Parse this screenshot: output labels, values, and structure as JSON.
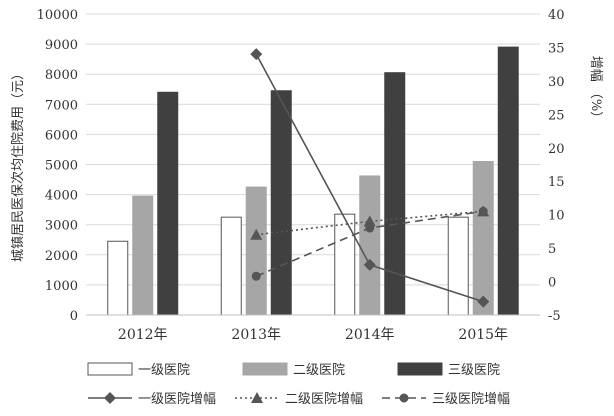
{
  "chart_data": {
    "type": "bar",
    "categories": [
      "2012年",
      "2013年",
      "2014年",
      "2015年"
    ],
    "ylabel": "城镇居民医保次均住院费用（元）",
    "y2label": "增幅 （%）",
    "ylim": [
      0,
      10000
    ],
    "yticks": [
      0,
      1000,
      2000,
      3000,
      4000,
      5000,
      6000,
      7000,
      8000,
      9000,
      10000
    ],
    "y2lim": [
      -5,
      40
    ],
    "y2ticks": [
      -5,
      0,
      5,
      10,
      15,
      20,
      25,
      30,
      35,
      40
    ],
    "grid": true,
    "legend_position": "bottom",
    "bar_series": [
      {
        "name": "一级医院",
        "values": [
          2450,
          3250,
          3350,
          3250
        ],
        "color": "#ffffff"
      },
      {
        "name": "二级医院",
        "values": [
          3950,
          4250,
          4620,
          5100
        ],
        "color": "#a6a6a6"
      },
      {
        "name": "三级医院",
        "values": [
          7400,
          7450,
          8050,
          8900
        ],
        "color": "#404040"
      }
    ],
    "line_series": [
      {
        "name": "一级医院增幅",
        "values": [
          null,
          34,
          2.5,
          -3
        ],
        "color": "#555555",
        "dash": "solid",
        "marker": "diamond"
      },
      {
        "name": "二级医院增幅",
        "values": [
          null,
          7,
          9,
          10.5
        ],
        "color": "#555555",
        "dash": "dotted",
        "marker": "triangle"
      },
      {
        "name": "三级医院增幅",
        "values": [
          null,
          0.8,
          8,
          10.5
        ],
        "color": "#555555",
        "dash": "dashed",
        "marker": "circle"
      }
    ]
  }
}
